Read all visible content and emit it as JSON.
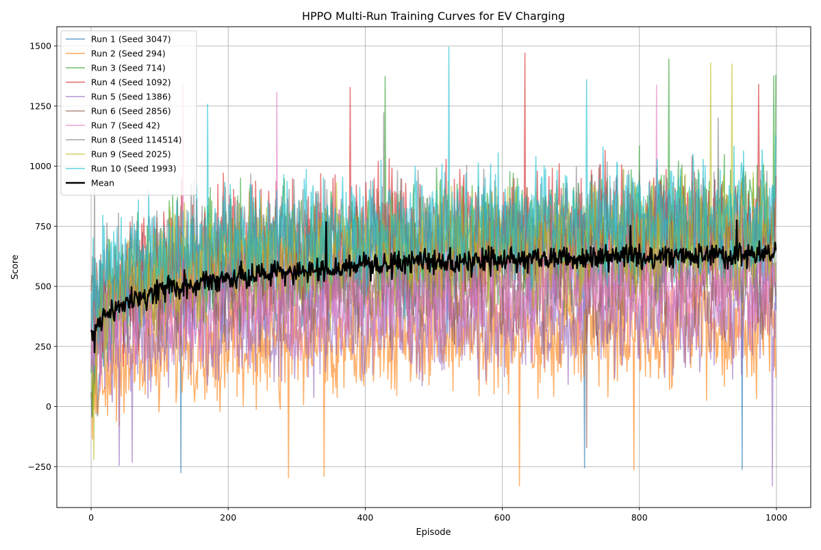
{
  "chart_data": {
    "type": "line",
    "title": "HPPO Multi-Run Training Curves for EV Charging",
    "xlabel": "Episode",
    "ylabel": "Score",
    "xlim": [
      -50,
      1050
    ],
    "ylim": [
      -420,
      1580
    ],
    "xticks": [
      0,
      200,
      400,
      600,
      800,
      1000
    ],
    "yticks": [
      -250,
      0,
      250,
      500,
      750,
      1000,
      1250,
      1500
    ],
    "x_range": [
      0,
      999
    ],
    "grid": true,
    "legend_position": "top-left",
    "series": [
      {
        "name": "Run 1 (Seed 3047)",
        "color": "#1f77b4",
        "opacity": 0.6,
        "start": 60,
        "end": 400,
        "noise": 250,
        "samples": [
          60,
          350,
          420,
          480,
          500,
          510,
          520,
          520,
          530,
          530,
          540,
          540,
          550,
          550,
          560,
          560,
          570,
          570,
          580,
          580,
          590,
          590,
          600,
          600,
          610,
          610,
          620,
          620,
          620,
          630,
          630,
          640,
          640,
          640,
          650,
          650,
          650,
          660,
          660,
          660,
          660
        ],
        "extremes": [
          [
            131,
            -275
          ],
          [
            720,
            -255
          ],
          [
            950,
            -262
          ]
        ]
      },
      {
        "name": "Run 2 (Seed 294)",
        "color": "#ff7f0e",
        "opacity": 0.6,
        "start": 40,
        "end": 120,
        "noise": 250,
        "samples": [
          40,
          160,
          200,
          220,
          230,
          240,
          240,
          250,
          250,
          250,
          260,
          260,
          260,
          270,
          270,
          270,
          270,
          280,
          280,
          280,
          280,
          280,
          290,
          290,
          290,
          290,
          290,
          300,
          300,
          300,
          300,
          300,
          300,
          310,
          310,
          310,
          310,
          310,
          310,
          310,
          310
        ],
        "extremes": [
          [
            288,
            -295
          ],
          [
            340,
            -290
          ],
          [
            625,
            -330
          ],
          [
            792,
            -262
          ]
        ]
      },
      {
        "name": "Run 3 (Seed 714)",
        "color": "#2ca02c",
        "opacity": 0.6,
        "start": 140,
        "end": 1380,
        "noise": 280,
        "samples": [
          140,
          420,
          500,
          540,
          570,
          590,
          600,
          610,
          620,
          630,
          640,
          650,
          650,
          660,
          670,
          670,
          680,
          680,
          690,
          690,
          700,
          700,
          700,
          710,
          710,
          710,
          720,
          720,
          720,
          720,
          730,
          730,
          730,
          740,
          740,
          740,
          740,
          740,
          750,
          750,
          750
        ],
        "extremes": [
          [
            429,
            1373
          ],
          [
            843,
            1445
          ],
          [
            996,
            1375
          ]
        ]
      },
      {
        "name": "Run 4 (Seed 1092)",
        "color": "#d62728",
        "opacity": 0.6,
        "start": 310,
        "end": 960,
        "noise": 280,
        "samples": [
          310,
          450,
          520,
          560,
          590,
          610,
          620,
          630,
          640,
          650,
          660,
          670,
          670,
          680,
          690,
          690,
          700,
          700,
          710,
          710,
          710,
          720,
          720,
          720,
          730,
          730,
          730,
          740,
          740,
          740,
          740,
          750,
          750,
          750,
          750,
          760,
          760,
          760,
          760,
          760,
          760
        ],
        "extremes": [
          [
            378,
            1327
          ],
          [
            633,
            1470
          ],
          [
            974,
            1340
          ]
        ]
      },
      {
        "name": "Run 5 (Seed 1386)",
        "color": "#9467bd",
        "opacity": 0.6,
        "start": 230,
        "end": 600,
        "noise": 250,
        "samples": [
          230,
          260,
          270,
          280,
          290,
          300,
          300,
          310,
          310,
          320,
          320,
          330,
          330,
          330,
          340,
          340,
          340,
          350,
          350,
          350,
          350,
          360,
          360,
          360,
          360,
          360,
          370,
          370,
          370,
          370,
          370,
          380,
          380,
          380,
          380,
          380,
          380,
          390,
          390,
          390,
          390
        ],
        "extremes": [
          [
            41,
            -245
          ],
          [
            60,
            -232
          ],
          [
            994,
            -330
          ]
        ]
      },
      {
        "name": "Run 6 (Seed 2856)",
        "color": "#8c564b",
        "opacity": 0.6,
        "start": 480,
        "end": 460,
        "noise": 250,
        "samples": [
          480,
          470,
          460,
          460,
          460,
          460,
          470,
          470,
          470,
          470,
          480,
          480,
          480,
          480,
          490,
          490,
          490,
          490,
          500,
          500,
          500,
          500,
          500,
          510,
          510,
          510,
          510,
          510,
          510,
          520,
          520,
          520,
          520,
          520,
          520,
          520,
          530,
          530,
          530,
          530,
          530
        ],
        "extremes": [
          [
            723,
            -170
          ]
        ]
      },
      {
        "name": "Run 7 (Seed 42)",
        "color": "#e377c2",
        "opacity": 0.6,
        "start": 150,
        "end": 520,
        "noise": 250,
        "samples": [
          150,
          320,
          360,
          390,
          400,
          410,
          420,
          420,
          430,
          430,
          440,
          440,
          440,
          450,
          450,
          450,
          460,
          460,
          460,
          460,
          470,
          470,
          470,
          470,
          470,
          480,
          480,
          480,
          480,
          480,
          490,
          490,
          490,
          490,
          490,
          490,
          500,
          500,
          500,
          500,
          500
        ],
        "extremes": [
          [
            134,
            1345
          ],
          [
            271,
            1307
          ],
          [
            825,
            1337
          ]
        ]
      },
      {
        "name": "Run 8 (Seed 114514)",
        "color": "#7f7f7f",
        "opacity": 0.6,
        "start": 330,
        "end": 640,
        "noise": 260,
        "samples": [
          330,
          520,
          580,
          610,
          630,
          640,
          650,
          660,
          670,
          670,
          680,
          680,
          690,
          690,
          700,
          700,
          700,
          710,
          710,
          710,
          710,
          720,
          720,
          720,
          720,
          730,
          730,
          730,
          730,
          730,
          740,
          740,
          740,
          740,
          740,
          740,
          750,
          750,
          750,
          750,
          750
        ],
        "extremes": [
          [
            5,
            1010
          ],
          [
            427,
            1222
          ],
          [
            915,
            1200
          ]
        ]
      },
      {
        "name": "Run 9 (Seed 2025)",
        "color": "#bcbd22",
        "opacity": 0.6,
        "start": 70,
        "end": 520,
        "noise": 260,
        "samples": [
          70,
          420,
          500,
          540,
          560,
          580,
          590,
          600,
          610,
          620,
          620,
          630,
          630,
          640,
          640,
          650,
          650,
          650,
          660,
          660,
          660,
          670,
          670,
          670,
          670,
          680,
          680,
          680,
          680,
          680,
          690,
          690,
          690,
          690,
          690,
          700,
          700,
          700,
          700,
          700,
          700
        ],
        "extremes": [
          [
            4,
            -220
          ],
          [
            904,
            1430
          ],
          [
            935,
            1425
          ]
        ]
      },
      {
        "name": "Run 10 (Seed 1993)",
        "color": "#17becf",
        "opacity": 0.6,
        "start": 470,
        "end": 1130,
        "noise": 260,
        "samples": [
          470,
          560,
          600,
          630,
          650,
          660,
          670,
          680,
          690,
          700,
          700,
          710,
          720,
          720,
          730,
          730,
          740,
          740,
          740,
          750,
          750,
          750,
          760,
          760,
          760,
          760,
          770,
          770,
          770,
          770,
          770,
          780,
          780,
          780,
          780,
          780,
          780,
          790,
          790,
          790,
          790
        ],
        "extremes": [
          [
            170,
            1258
          ],
          [
            522,
            1495
          ],
          [
            723,
            1360
          ]
        ]
      },
      {
        "name": "Mean",
        "color": "#000000",
        "opacity": 1.0,
        "start": 310,
        "end": 650,
        "noise": 55,
        "bold": true,
        "samples": [
          310,
          380,
          430,
          460,
          480,
          500,
          510,
          520,
          530,
          540,
          550,
          555,
          560,
          565,
          570,
          575,
          580,
          585,
          590,
          595,
          600,
          600,
          605,
          605,
          610,
          610,
          615,
          615,
          620,
          620,
          620,
          625,
          625,
          625,
          630,
          630,
          630,
          630,
          635,
          635,
          640
        ],
        "extremes": [
          [
            5,
            225
          ],
          [
            343,
            768
          ],
          [
            787,
            752
          ],
          [
            942,
            775
          ]
        ]
      }
    ]
  }
}
